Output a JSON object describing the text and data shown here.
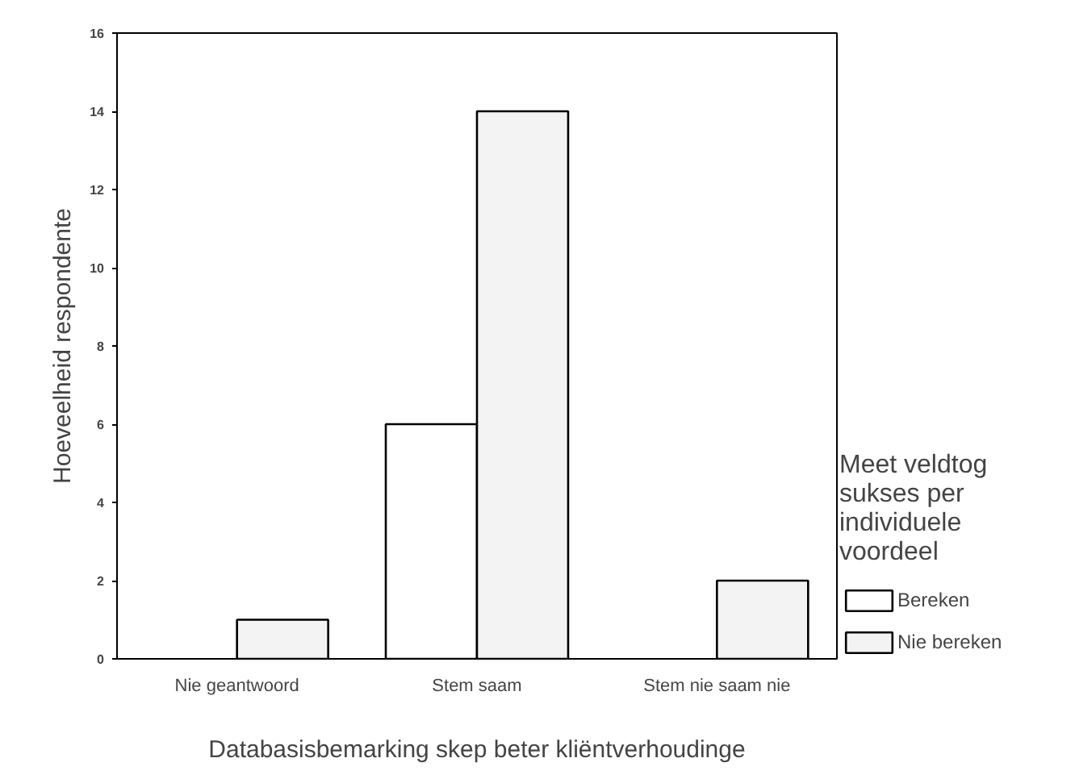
{
  "chart_data": {
    "type": "bar",
    "xlabel": "Databasisbemarking skep beter kliëntverhoudinge",
    "ylabel": "Hoeveelheid respondente",
    "legend_title": "Meet veldtog sukses per individuele voordeel",
    "categories": [
      "Nie geantwoord",
      "Stem saam",
      "Stem nie saam nie"
    ],
    "series": [
      {
        "name": "Bereken",
        "color": "#ffffff",
        "values": [
          0,
          6,
          0
        ]
      },
      {
        "name": "Nie bereken",
        "color": "#f3f3f3",
        "values": [
          1,
          14,
          2
        ]
      }
    ],
    "ylim": [
      0,
      16
    ],
    "yticks": [
      0,
      2,
      4,
      6,
      8,
      10,
      12,
      14,
      16
    ],
    "grid": false,
    "legend": "right"
  }
}
